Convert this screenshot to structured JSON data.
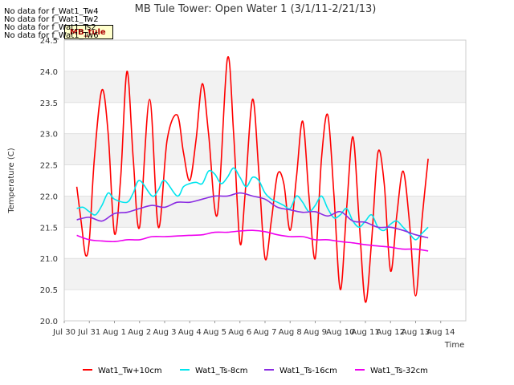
{
  "chart_data": {
    "type": "line",
    "title": "MB Tule Tower: Open Water 1 (3/1/11-2/21/13)",
    "xlabel": "Time",
    "ylabel": "Temperature (C)",
    "ylim": [
      20.0,
      24.5
    ],
    "xlim": [
      0,
      16
    ],
    "yticks": [
      20.0,
      20.5,
      21.0,
      21.5,
      22.0,
      22.5,
      23.0,
      23.5,
      24.0,
      24.5
    ],
    "ytick_labels": [
      "20.0",
      "20.5",
      "21.0",
      "21.5",
      "22.0",
      "22.5",
      "23.0",
      "23.5",
      "24.0",
      "24.5"
    ],
    "xticks": [
      0,
      1,
      2,
      3,
      4,
      5,
      6,
      7,
      8,
      9,
      10,
      11,
      12,
      13,
      14,
      15
    ],
    "xtick_labels": [
      "Jul 30",
      "Jul 31",
      "Aug 1",
      "Aug 2",
      "Aug 3",
      "Aug 4",
      "Aug 5",
      "Aug 6",
      "Aug 7",
      "Aug 8",
      "Aug 9",
      "Aug 10",
      "Aug 11",
      "Aug 12",
      "Aug 13",
      "Aug 14"
    ],
    "no_data_messages": [
      "No data for f_Wat1_Tw4",
      "No data for f_Wat1_Tw2",
      "No data for f_Wat1_Ts2",
      "No data for f_Wat1_Tw6"
    ],
    "tag_label": "MB_tule",
    "series": [
      {
        "name": "Wat1_Tw+10cm",
        "color": "#ff0000",
        "x": [
          0.5,
          0.7,
          0.85,
          1.0,
          1.2,
          1.5,
          1.75,
          2.0,
          2.25,
          2.5,
          2.75,
          3.0,
          3.4,
          3.75,
          4.1,
          4.5,
          4.75,
          5.0,
          5.25,
          5.5,
          5.75,
          6.1,
          6.5,
          6.75,
          7.0,
          7.2,
          7.5,
          7.75,
          8.0,
          8.25,
          8.5,
          8.75,
          9.0,
          9.25,
          9.5,
          9.75,
          10.0,
          10.25,
          10.5,
          10.75,
          11.0,
          11.25,
          11.5,
          11.75,
          12.0,
          12.25,
          12.5,
          12.75,
          13.0,
          13.25,
          13.5,
          13.75,
          14.0,
          14.25,
          14.5
        ],
        "y": [
          22.15,
          21.5,
          21.05,
          21.3,
          22.6,
          23.7,
          23.0,
          21.4,
          22.3,
          24.0,
          22.6,
          21.5,
          23.55,
          21.5,
          22.9,
          23.3,
          22.7,
          22.25,
          22.9,
          23.8,
          23.0,
          21.7,
          24.2,
          23.0,
          21.25,
          22.0,
          23.55,
          22.4,
          21.0,
          21.6,
          22.35,
          22.2,
          21.45,
          22.3,
          23.2,
          22.0,
          21.0,
          22.6,
          23.3,
          22.0,
          20.5,
          21.8,
          22.95,
          21.6,
          20.3,
          21.3,
          22.7,
          22.2,
          20.8,
          21.7,
          22.4,
          21.6,
          20.4,
          21.6,
          22.6
        ]
      },
      {
        "name": "Wat1_Ts-8cm",
        "color": "#00e5ee",
        "x": [
          0.5,
          0.75,
          1.0,
          1.25,
          1.5,
          1.75,
          2.0,
          2.5,
          2.75,
          3.0,
          3.5,
          3.75,
          4.0,
          4.5,
          4.75,
          5.0,
          5.25,
          5.5,
          5.75,
          6.0,
          6.25,
          6.5,
          6.75,
          7.0,
          7.25,
          7.5,
          7.75,
          8.0,
          8.25,
          8.5,
          8.75,
          9.0,
          9.25,
          9.5,
          9.75,
          10.0,
          10.25,
          10.5,
          10.75,
          11.0,
          11.25,
          11.5,
          11.75,
          12.0,
          12.25,
          12.5,
          12.75,
          13.0,
          13.25,
          13.5,
          13.75,
          14.0,
          14.25,
          14.5
        ],
        "y": [
          21.8,
          21.82,
          21.75,
          21.7,
          21.85,
          22.05,
          21.95,
          21.9,
          22.05,
          22.25,
          22.0,
          22.1,
          22.25,
          22.0,
          22.15,
          22.2,
          22.22,
          22.2,
          22.4,
          22.35,
          22.2,
          22.3,
          22.45,
          22.3,
          22.15,
          22.3,
          22.25,
          22.05,
          21.95,
          21.9,
          21.85,
          21.8,
          22.0,
          21.9,
          21.75,
          21.85,
          22.0,
          21.8,
          21.65,
          21.7,
          21.8,
          21.6,
          21.5,
          21.6,
          21.7,
          21.5,
          21.45,
          21.55,
          21.6,
          21.5,
          21.4,
          21.3,
          21.4,
          21.5
        ]
      },
      {
        "name": "Wat1_Ts-16cm",
        "color": "#8a2be2",
        "x": [
          0.5,
          1.0,
          1.5,
          2.0,
          2.5,
          3.0,
          3.5,
          4.0,
          4.5,
          5.0,
          5.5,
          6.0,
          6.5,
          7.0,
          7.5,
          8.0,
          8.5,
          9.0,
          9.5,
          10.0,
          10.5,
          11.0,
          11.5,
          12.0,
          12.5,
          13.0,
          13.5,
          14.0,
          14.5
        ],
        "y": [
          21.62,
          21.66,
          21.6,
          21.72,
          21.74,
          21.8,
          21.85,
          21.82,
          21.9,
          21.9,
          21.95,
          22.0,
          22.0,
          22.05,
          22.0,
          21.95,
          21.82,
          21.78,
          21.74,
          21.75,
          21.68,
          21.75,
          21.6,
          21.58,
          21.5,
          21.5,
          21.45,
          21.38,
          21.33
        ]
      },
      {
        "name": "Wat1_Ts-32cm",
        "color": "#ee00ee",
        "x": [
          0.5,
          1.0,
          1.5,
          2.0,
          2.5,
          3.0,
          3.5,
          4.0,
          4.5,
          5.0,
          5.5,
          6.0,
          6.5,
          7.0,
          7.5,
          8.0,
          8.5,
          9.0,
          9.5,
          10.0,
          10.5,
          11.0,
          11.5,
          12.0,
          12.5,
          13.0,
          13.5,
          14.0,
          14.5
        ],
        "y": [
          21.37,
          21.3,
          21.28,
          21.27,
          21.3,
          21.3,
          21.35,
          21.35,
          21.36,
          21.37,
          21.38,
          21.42,
          21.42,
          21.44,
          21.45,
          21.43,
          21.38,
          21.35,
          21.35,
          21.3,
          21.3,
          21.27,
          21.25,
          21.22,
          21.2,
          21.18,
          21.15,
          21.15,
          21.12
        ]
      }
    ]
  }
}
